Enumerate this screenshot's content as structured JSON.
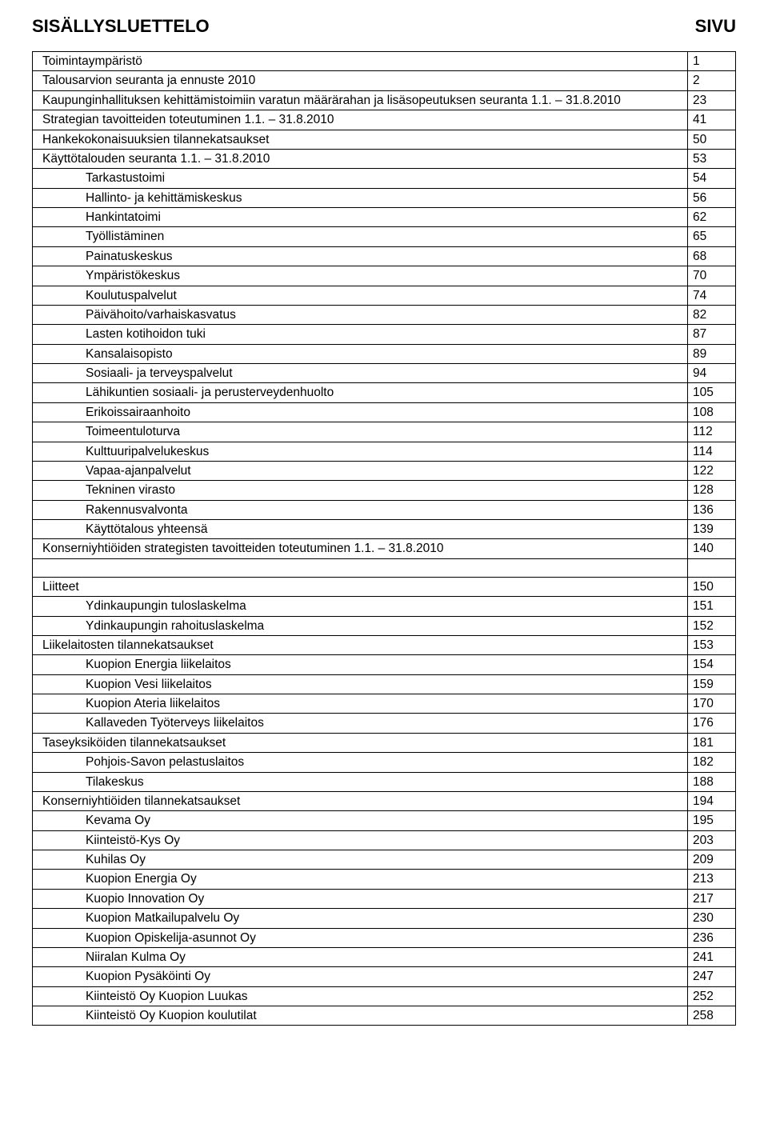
{
  "header": {
    "left": "SISÄLLYSLUETTELO",
    "right": "SIVU"
  },
  "toc": [
    {
      "label": "Toimintaympäristö",
      "page": "1",
      "indent": 0
    },
    {
      "label": "Talousarvion seuranta ja ennuste 2010",
      "page": "2",
      "indent": 0
    },
    {
      "label": "Kaupunginhallituksen kehittämistoimiin varatun määrärahan ja lisäsopeutuksen seuranta 1.1. – 31.8.2010",
      "page": "23",
      "indent": 0
    },
    {
      "label": "Strategian tavoitteiden toteutuminen 1.1. – 31.8.2010",
      "page": "41",
      "indent": 0
    },
    {
      "label": "Hankekokonaisuuksien tilannekatsaukset",
      "page": "50",
      "indent": 0
    },
    {
      "label": "Käyttötalouden seuranta 1.1. – 31.8.2010",
      "page": "53",
      "indent": 0
    },
    {
      "label": "Tarkastustoimi",
      "page": "54",
      "indent": 1
    },
    {
      "label": "Hallinto- ja kehittämiskeskus",
      "page": "56",
      "indent": 1
    },
    {
      "label": "Hankintatoimi",
      "page": "62",
      "indent": 1
    },
    {
      "label": "Työllistäminen",
      "page": "65",
      "indent": 1
    },
    {
      "label": "Painatuskeskus",
      "page": "68",
      "indent": 1
    },
    {
      "label": "Ympäristökeskus",
      "page": "70",
      "indent": 1
    },
    {
      "label": "Koulutuspalvelut",
      "page": "74",
      "indent": 1
    },
    {
      "label": "Päivähoito/varhaiskasvatus",
      "page": "82",
      "indent": 1
    },
    {
      "label": "Lasten kotihoidon tuki",
      "page": "87",
      "indent": 1
    },
    {
      "label": "Kansalaisopisto",
      "page": "89",
      "indent": 1
    },
    {
      "label": "Sosiaali- ja terveyspalvelut",
      "page": "94",
      "indent": 1
    },
    {
      "label": "Lähikuntien sosiaali- ja perusterveydenhuolto",
      "page": "105",
      "indent": 1
    },
    {
      "label": "Erikoissairaanhoito",
      "page": "108",
      "indent": 1
    },
    {
      "label": "Toimeentuloturva",
      "page": "112",
      "indent": 1
    },
    {
      "label": "Kulttuuripalvelukeskus",
      "page": "114",
      "indent": 1
    },
    {
      "label": "Vapaa-ajanpalvelut",
      "page": "122",
      "indent": 1
    },
    {
      "label": "Tekninen virasto",
      "page": "128",
      "indent": 1
    },
    {
      "label": "Rakennusvalvonta",
      "page": "136",
      "indent": 1
    },
    {
      "label": "Käyttötalous yhteensä",
      "page": "139",
      "indent": 1
    },
    {
      "label": "Konserniyhtiöiden strategisten tavoitteiden toteutuminen 1.1. – 31.8.2010",
      "page": "140",
      "indent": 0
    },
    {
      "blank": true
    },
    {
      "label": "Liitteet",
      "page": "150",
      "indent": 0
    },
    {
      "label": "Ydinkaupungin tuloslaskelma",
      "page": "151",
      "indent": 1
    },
    {
      "label": "Ydinkaupungin rahoituslaskelma",
      "page": "152",
      "indent": 1
    },
    {
      "label": "Liikelaitosten tilannekatsaukset",
      "page": "153",
      "indent": 0
    },
    {
      "label": "Kuopion Energia liikelaitos",
      "page": "154",
      "indent": 1
    },
    {
      "label": "Kuopion Vesi liikelaitos",
      "page": "159",
      "indent": 1
    },
    {
      "label": "Kuopion Ateria liikelaitos",
      "page": "170",
      "indent": 1
    },
    {
      "label": "Kallaveden Työterveys liikelaitos",
      "page": "176",
      "indent": 1
    },
    {
      "label": "Taseyksiköiden tilannekatsaukset",
      "page": "181",
      "indent": 0
    },
    {
      "label": "Pohjois-Savon pelastuslaitos",
      "page": "182",
      "indent": 1
    },
    {
      "label": "Tilakeskus",
      "page": "188",
      "indent": 1
    },
    {
      "label": "Konserniyhtiöiden tilannekatsaukset",
      "page": "194",
      "indent": 0
    },
    {
      "label": "Kevama Oy",
      "page": "195",
      "indent": 1
    },
    {
      "label": "Kiinteistö-Kys Oy",
      "page": "203",
      "indent": 1
    },
    {
      "label": "Kuhilas Oy",
      "page": "209",
      "indent": 1
    },
    {
      "label": "Kuopion Energia Oy",
      "page": "213",
      "indent": 1
    },
    {
      "label": "Kuopio Innovation Oy",
      "page": "217",
      "indent": 1
    },
    {
      "label": "Kuopion Matkailupalvelu Oy",
      "page": "230",
      "indent": 1
    },
    {
      "label": "Kuopion Opiskelija-asunnot Oy",
      "page": "236",
      "indent": 1
    },
    {
      "label": "Niiralan Kulma Oy",
      "page": "241",
      "indent": 1
    },
    {
      "label": "Kuopion Pysäköinti Oy",
      "page": "247",
      "indent": 1
    },
    {
      "label": "Kiinteistö Oy Kuopion Luukas",
      "page": "252",
      "indent": 1
    },
    {
      "label": "Kiinteistö Oy Kuopion koulutilat",
      "page": "258",
      "indent": 1
    }
  ]
}
